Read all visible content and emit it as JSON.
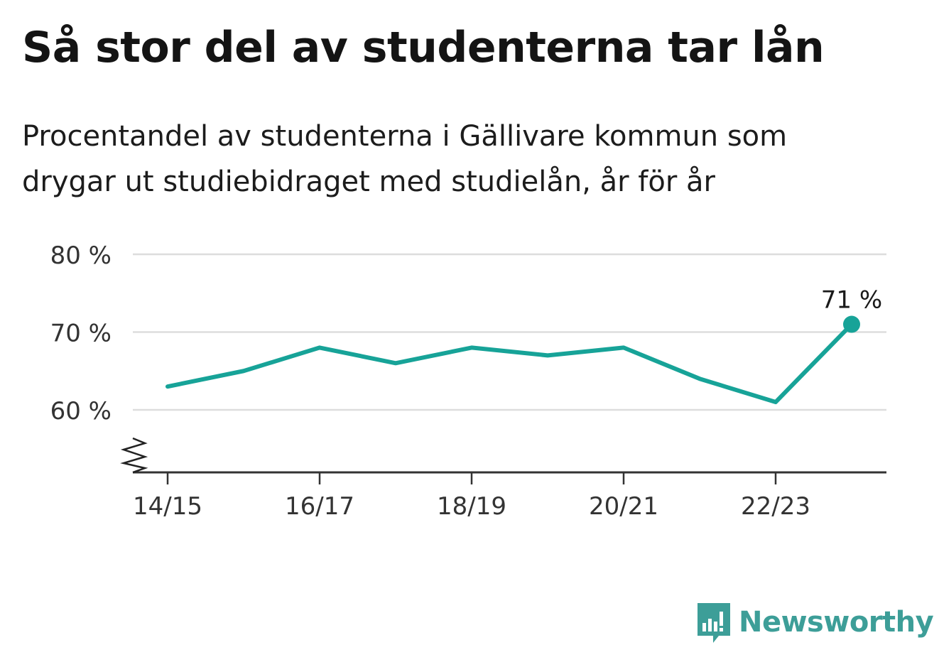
{
  "title": "Så stor del av studenterna tar lån",
  "subtitle": "Procentandel av studenterna i Gällivare kommun som drygar ut studiebidraget med studielån, år för år",
  "brand": {
    "name": "Newsworthy",
    "logo_icon": "bar-chart-speech-bubble-icon"
  },
  "colors": {
    "line": "#17a398",
    "grid": "#dddddd",
    "axis": "#333333",
    "brand": "#3d9e98"
  },
  "chart_data": {
    "type": "line",
    "x": [
      "14/15",
      "15/16",
      "16/17",
      "17/18",
      "18/19",
      "19/20",
      "20/21",
      "21/22",
      "22/23",
      "23/24"
    ],
    "values": [
      63,
      65,
      68,
      66,
      68,
      67,
      68,
      64,
      61,
      71
    ],
    "x_tick_labels": [
      "14/15",
      "16/17",
      "18/19",
      "20/21",
      "22/23"
    ],
    "y_ticks": [
      60,
      70,
      80
    ],
    "y_tick_labels": [
      "60 %",
      "70 %",
      "80 %"
    ],
    "ylim": [
      52,
      80
    ],
    "axis_break": true,
    "grid": true,
    "end_label": "71 %",
    "xlabel": "",
    "ylabel": ""
  }
}
